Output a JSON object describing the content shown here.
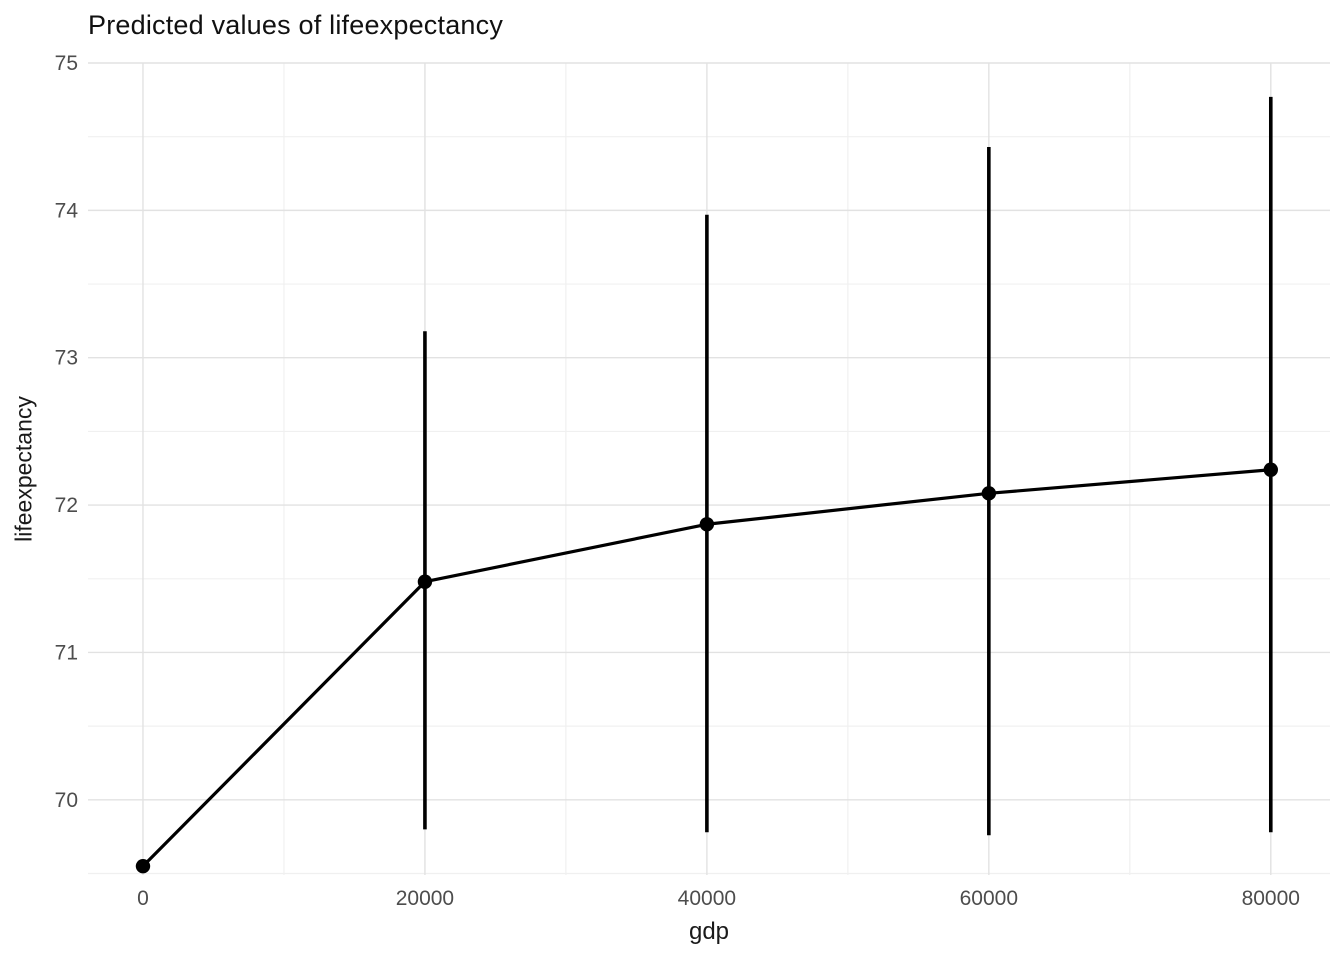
{
  "chart_data": {
    "type": "line",
    "title": "Predicted values of lifeexpectancy",
    "xlabel": "gdp",
    "ylabel": "lifeexpectancy",
    "x": [
      0,
      20000,
      40000,
      60000,
      80000
    ],
    "y": [
      69.55,
      71.48,
      71.87,
      72.08,
      72.24
    ],
    "ci_low": [
      null,
      69.8,
      69.78,
      69.76,
      69.78
    ],
    "ci_high": [
      null,
      73.18,
      73.97,
      74.43,
      74.77
    ],
    "xlim": [
      -3900,
      84200
    ],
    "ylim": [
      69.49,
      75
    ],
    "x_ticks": [
      0,
      20000,
      40000,
      60000,
      80000
    ],
    "y_ticks": [
      70,
      71,
      72,
      73,
      74,
      75
    ],
    "x_minor_gridlines": [
      10000,
      30000,
      50000,
      70000
    ],
    "y_minor_gridlines": [
      69.5,
      70.5,
      71.5,
      72.5,
      73.5,
      74.5
    ],
    "grid": true,
    "legend": "none",
    "colors": {
      "background": "#ffffff",
      "grid_major": "#e2e2e2",
      "grid_minor": "#f0f0f0",
      "series": "#000000",
      "tick_text": "#4d4d4d",
      "title_text": "#111111"
    }
  }
}
